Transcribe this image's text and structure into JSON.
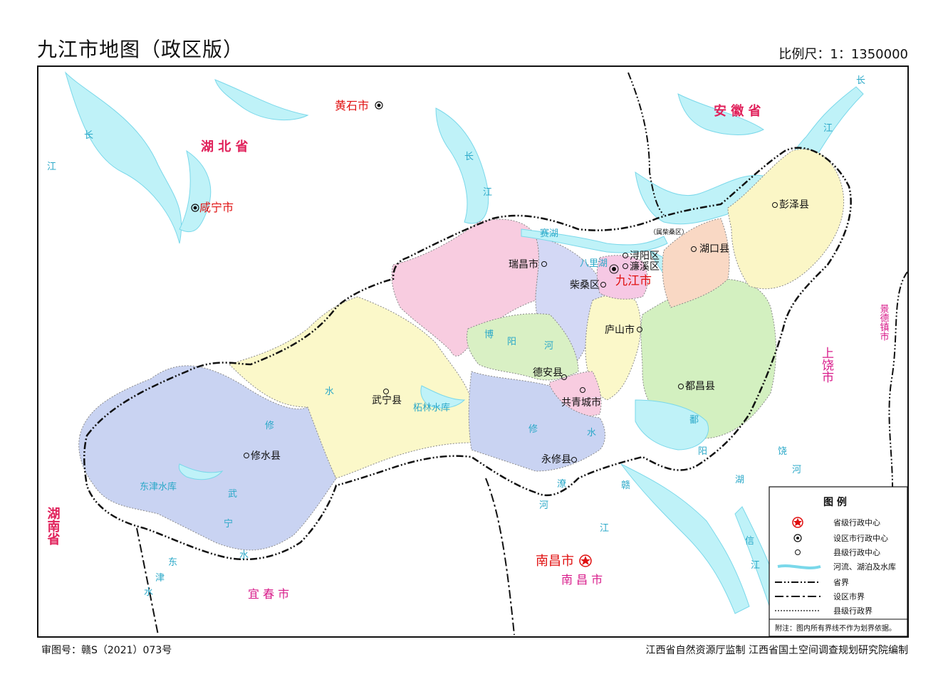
{
  "title": "九江市地图（政区版）",
  "scale": "比例尺：1：1350000",
  "footer": {
    "left": "审图号：赣S（2021）073号",
    "right": "江西省自然资源厅监制    江西省国土空间调查规划研究院编制"
  },
  "provinces": [
    {
      "id": "anhui",
      "text": "安  徽  省"
    },
    {
      "id": "hubei",
      "text": "湖    北    省"
    },
    {
      "id": "hunan",
      "text": "湖南省"
    }
  ],
  "outside_cities": [
    {
      "id": "huangshi",
      "text": "黄石市"
    },
    {
      "id": "xianning",
      "text": "咸宁市"
    },
    {
      "id": "nanchang",
      "text": "南昌市"
    },
    {
      "id": "jingdezhen",
      "text": "景德镇市"
    },
    {
      "id": "shangrao",
      "text": "上饶市"
    },
    {
      "id": "yichun",
      "text": "宜    春    市"
    },
    {
      "id": "nanchang2",
      "text": "南    昌    市"
    }
  ],
  "admin": {
    "city": "九江市",
    "districts": [
      {
        "id": "xunyang",
        "text": "浔阳区"
      },
      {
        "id": "lianxi",
        "text": "濂溪区"
      },
      {
        "id": "chaisang",
        "text": "柴桑区"
      },
      {
        "id": "ruichang",
        "text": "瑞昌市"
      },
      {
        "id": "hukou",
        "text": "湖口县"
      },
      {
        "id": "pengze",
        "text": "彭泽县"
      },
      {
        "id": "lushan",
        "text": "庐山市"
      },
      {
        "id": "dean",
        "text": "德安县"
      },
      {
        "id": "gongqing",
        "text": "共青城市"
      },
      {
        "id": "duchang",
        "text": "都昌县"
      },
      {
        "id": "wuning",
        "text": "武宁县"
      },
      {
        "id": "xiushui",
        "text": "修水县"
      },
      {
        "id": "yongxiu",
        "text": "永修县"
      }
    ],
    "enclave": "（属柴桑区）"
  },
  "water_labels": [
    {
      "id": "changjiang1",
      "text": "长"
    },
    {
      "id": "changjiang2",
      "text": "江"
    },
    {
      "id": "changjiang3",
      "text": "长"
    },
    {
      "id": "changjiang4",
      "text": "江"
    },
    {
      "id": "changjiang5",
      "text": "长"
    },
    {
      "id": "changjiang6",
      "text": "江"
    },
    {
      "id": "saihu",
      "text": "赛湖"
    },
    {
      "id": "bahu",
      "text": "八里湖"
    },
    {
      "id": "boyang1",
      "text": "博"
    },
    {
      "id": "boyang2",
      "text": "阳"
    },
    {
      "id": "boyang3",
      "text": "河"
    },
    {
      "id": "zhelin",
      "text": "柘林水库"
    },
    {
      "id": "dongjin",
      "text": "东津水库"
    },
    {
      "id": "xiu1",
      "text": "修"
    },
    {
      "id": "xiu2",
      "text": "水"
    },
    {
      "id": "xiu3",
      "text": "修"
    },
    {
      "id": "xiu4",
      "text": "水"
    },
    {
      "id": "wu1",
      "text": "武"
    },
    {
      "id": "wu2",
      "text": "宁"
    },
    {
      "id": "wu3",
      "text": "水"
    },
    {
      "id": "po1",
      "text": "鄱"
    },
    {
      "id": "po2",
      "text": "阳"
    },
    {
      "id": "po3",
      "text": "湖"
    },
    {
      "id": "rao1",
      "text": "饶"
    },
    {
      "id": "rao2",
      "text": "河"
    },
    {
      "id": "gan1",
      "text": "赣"
    },
    {
      "id": "gan2",
      "text": "江"
    },
    {
      "id": "xin1",
      "text": "信"
    },
    {
      "id": "xin2",
      "text": "江"
    },
    {
      "id": "liao1",
      "text": "潦"
    },
    {
      "id": "liao2",
      "text": "河"
    },
    {
      "id": "dongjinshui1",
      "text": "东"
    },
    {
      "id": "dongjinshui2",
      "text": "津"
    },
    {
      "id": "dongjinshui3",
      "text": "水"
    }
  ],
  "legend": {
    "title": "图    例",
    "items": [
      {
        "id": "provincial_center",
        "text": "省级行政中心",
        "icon": "red-star"
      },
      {
        "id": "prefecture_center",
        "text": "设区市行政中心",
        "icon": "double-circle"
      },
      {
        "id": "county_center",
        "text": "县级行政中心",
        "icon": "circle-dot"
      },
      {
        "id": "water",
        "text": "河流、湖泊及水库",
        "icon": "water-swatch"
      },
      {
        "id": "province_border",
        "text": "省界",
        "icon": "dash-dot-dot-line"
      },
      {
        "id": "prefecture_border",
        "text": "设区市界",
        "icon": "dash-dot-line"
      },
      {
        "id": "county_border",
        "text": "县级行政界",
        "icon": "dotted-line"
      }
    ],
    "note": "附注：图内所有界线不作为划界依据。"
  },
  "colors": {
    "water": "#bff2f8",
    "water_line": "#7ad8ea",
    "province_label": "#e0205a",
    "outside_city_label": "#d81b8a",
    "red_label": "#e01010",
    "river_text": "#2aa8c8",
    "xiushui_fill": "#c9d3f2",
    "wuning_fill": "#fbf8c9",
    "ruichang_fill": "#f8cce0",
    "chaisang_fill": "#d3d8f5",
    "dean_fill": "#d9f0c4",
    "lushan_fill": "#fbf8c9",
    "duchang_fill": "#d3f0c0",
    "hukou_fill": "#f9d8c4",
    "pengze_fill": "#fbf6c6",
    "yongxiu_fill": "#c9d3f2",
    "gongqing_fill": "#f8cce0",
    "city_fill": "#f6c8e4"
  }
}
